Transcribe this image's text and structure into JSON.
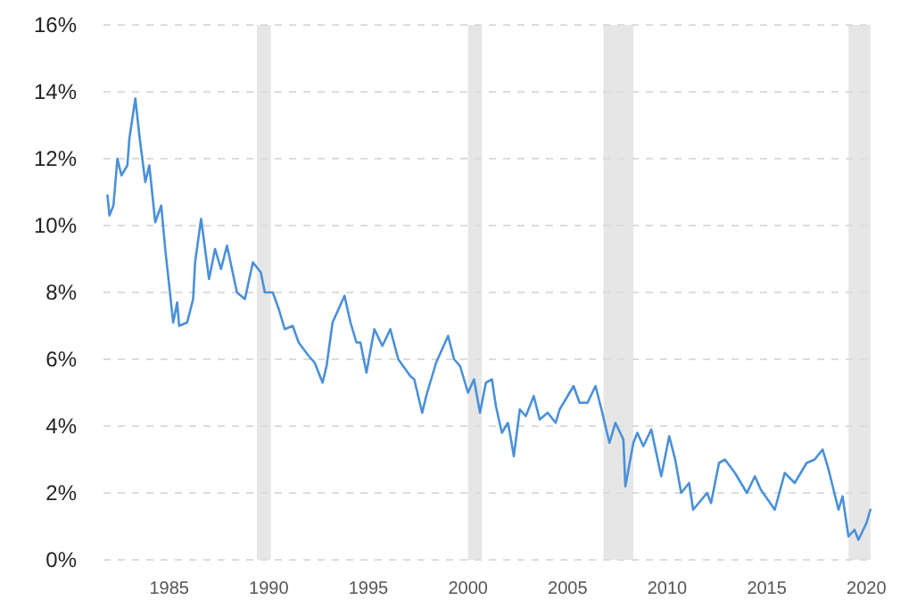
{
  "chart_data": {
    "type": "line",
    "x": [
      1981.9,
      1982.0,
      1982.2,
      1982.4,
      1982.6,
      1982.9,
      1983.0,
      1983.3,
      1983.5,
      1983.8,
      1984.0,
      1984.3,
      1984.6,
      1984.8,
      1985.2,
      1985.4,
      1985.5,
      1985.9,
      1986.2,
      1986.3,
      1986.6,
      1987.0,
      1987.3,
      1987.6,
      1987.9,
      1988.4,
      1988.8,
      1989.2,
      1989.6,
      1989.8,
      1990.2,
      1990.5,
      1990.8,
      1991.2,
      1991.5,
      1992.0,
      1992.3,
      1992.7,
      1992.9,
      1993.2,
      1993.8,
      1994.1,
      1994.4,
      1994.6,
      1994.9,
      1995.3,
      1995.7,
      1996.1,
      1996.5,
      1997.1,
      1997.3,
      1997.7,
      1997.9,
      1998.4,
      1999.0,
      1999.3,
      1999.6,
      2000.0,
      2000.3,
      2000.6,
      2000.9,
      2001.2,
      2001.4,
      2001.7,
      2002.0,
      2002.1,
      2002.3,
      2002.6,
      2002.9,
      2003.3,
      2003.6,
      2004.0,
      2004.4,
      2004.6,
      2005.3,
      2005.6,
      2006.0,
      2006.4,
      2006.7,
      2007.1,
      2007.4,
      2007.8,
      2007.9,
      2008.3,
      2008.5,
      2008.8,
      2009.2,
      2009.7,
      2010.1,
      2010.4,
      2010.7,
      2011.1,
      2011.3,
      2012.0,
      2012.2,
      2012.6,
      2012.9,
      2013.4,
      2014.0,
      2014.4,
      2014.7,
      2015.4,
      2015.9,
      2016.4,
      2017.0,
      2017.4,
      2017.8,
      2018.1,
      2018.6,
      2018.8,
      2019.1,
      2019.4,
      2019.6,
      2020.0,
      2020.2
    ],
    "series": [
      {
        "color": "#4a90d9",
        "values": [
          10.9,
          10.3,
          10.6,
          12.0,
          11.5,
          11.8,
          12.6,
          13.8,
          12.7,
          11.3,
          11.8,
          10.1,
          10.6,
          9.3,
          7.1,
          7.7,
          7.0,
          7.1,
          7.8,
          8.9,
          10.2,
          8.4,
          9.3,
          8.7,
          9.4,
          8.0,
          7.8,
          8.9,
          8.6,
          8.0,
          8.0,
          7.5,
          6.9,
          7.0,
          6.5,
          6.1,
          5.9,
          5.3,
          5.8,
          7.1,
          7.9,
          7.1,
          6.5,
          6.5,
          5.6,
          6.9,
          6.4,
          6.9,
          6.0,
          5.5,
          5.4,
          4.4,
          4.9,
          5.9,
          6.7,
          6.0,
          5.8,
          5.0,
          5.4,
          4.4,
          5.3,
          5.4,
          4.6,
          3.8,
          4.1,
          3.8,
          3.1,
          4.5,
          4.3,
          4.9,
          4.2,
          4.4,
          4.1,
          4.5,
          5.2,
          4.7,
          4.7,
          5.2,
          4.5,
          3.5,
          4.1,
          3.6,
          2.2,
          3.5,
          3.8,
          3.4,
          3.9,
          2.5,
          3.7,
          3.0,
          2.0,
          2.3,
          1.5,
          2.0,
          1.7,
          2.9,
          3.0,
          2.6,
          2.0,
          2.5,
          2.1,
          1.5,
          2.6,
          2.3,
          2.9,
          3.0,
          3.3,
          2.7,
          1.5,
          1.9,
          0.7,
          0.9,
          0.6,
          1.1,
          1.5
        ]
      }
    ],
    "xlim": [
      1981.7,
      2020.3
    ],
    "xticks": [
      1985,
      1990,
      1995,
      2000,
      2005,
      2010,
      2015,
      2020
    ],
    "ylim": [
      0,
      16
    ],
    "yticks": [
      {
        "value": 0,
        "label": "0%"
      },
      {
        "value": 2,
        "label": "2%"
      },
      {
        "value": 4,
        "label": "4%"
      },
      {
        "value": 6,
        "label": "6%"
      },
      {
        "value": 8,
        "label": "8%"
      },
      {
        "value": 10,
        "label": "10%"
      },
      {
        "value": 12,
        "label": "12%"
      },
      {
        "value": 14,
        "label": "14%"
      },
      {
        "value": 16,
        "label": "16%"
      }
    ],
    "grid": "y",
    "line_style": "solid",
    "bands": [
      {
        "axis": "x",
        "from": 1989.4,
        "to": 1990.1,
        "color": "#e6e6e6"
      },
      {
        "axis": "x",
        "from": 2000.0,
        "to": 2000.7,
        "color": "#e6e6e6"
      },
      {
        "axis": "x",
        "from": 2006.8,
        "to": 2008.3,
        "color": "#e6e6e6"
      },
      {
        "axis": "x",
        "from": 2019.1,
        "to": 2020.2,
        "color": "#e6e6e6"
      }
    ]
  }
}
